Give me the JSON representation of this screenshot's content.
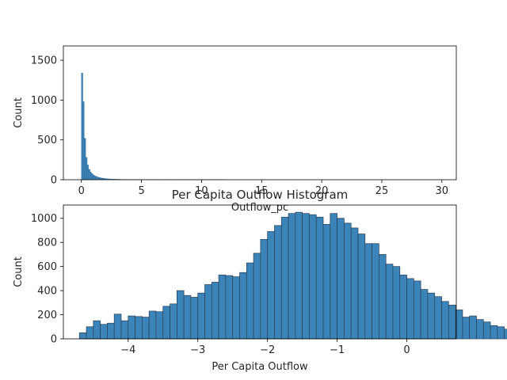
{
  "chart_data": [
    {
      "type": "bar",
      "subtype": "histogram",
      "title": "",
      "xlabel": "Outflow_pc",
      "ylabel": "Count",
      "xlim": [
        -1.5,
        31.2
      ],
      "ylim": [
        0,
        1680
      ],
      "xticks": [
        0,
        5,
        10,
        15,
        20,
        25,
        30
      ],
      "yticks": [
        0,
        500,
        1000,
        1500
      ],
      "bin_width": 0.12,
      "bin_start": 0,
      "bar_color": "#3b84b9",
      "edge_color": "#2a5f86",
      "grid": false,
      "values": [
        1340,
        980,
        520,
        280,
        185,
        130,
        95,
        75,
        60,
        48,
        40,
        34,
        28,
        24,
        20,
        17,
        15,
        13,
        11,
        10,
        9,
        8,
        7,
        6,
        6,
        5,
        5,
        4,
        4,
        4,
        3,
        3,
        3,
        3,
        2,
        2,
        2,
        2,
        2,
        2,
        2,
        1,
        1,
        1,
        1,
        1,
        1,
        1,
        1,
        1,
        1,
        1,
        1,
        1,
        1,
        1,
        1,
        1,
        1,
        1,
        1,
        1,
        1,
        1,
        1,
        1,
        1,
        1,
        1,
        1,
        1,
        1,
        1,
        1,
        1,
        1,
        1,
        1,
        1,
        1,
        1,
        1,
        1,
        1,
        1,
        1,
        1,
        1,
        1,
        1,
        1,
        1,
        1,
        1,
        1,
        1,
        1,
        1,
        1,
        1
      ]
    },
    {
      "type": "bar",
      "subtype": "histogram",
      "title": "Per Capita Outflow Histogram",
      "xlabel": "Per Capita Outflow",
      "ylabel": "Count",
      "xlim": [
        -4.93,
        0.71
      ],
      "ylim": [
        0,
        1110
      ],
      "xticks": [
        -4,
        -3,
        -2,
        -1,
        0
      ],
      "yticks": [
        0,
        200,
        400,
        600,
        800,
        1000
      ],
      "bin_start": -4.7,
      "bin_width": 0.1,
      "bar_color": "#3b84b9",
      "edge_color": "#2a3f55",
      "grid": false,
      "values": [
        50,
        100,
        150,
        120,
        130,
        205,
        150,
        190,
        185,
        180,
        230,
        225,
        270,
        290,
        400,
        360,
        345,
        380,
        450,
        470,
        530,
        525,
        515,
        550,
        630,
        710,
        825,
        890,
        940,
        1010,
        1040,
        1050,
        1040,
        1030,
        1010,
        950,
        1040,
        1000,
        960,
        920,
        870,
        790,
        790,
        700,
        620,
        600,
        530,
        500,
        480,
        410,
        380,
        350,
        310,
        280,
        240,
        180,
        190,
        160,
        140,
        110,
        100,
        80,
        90,
        70,
        60,
        55
      ]
    }
  ]
}
